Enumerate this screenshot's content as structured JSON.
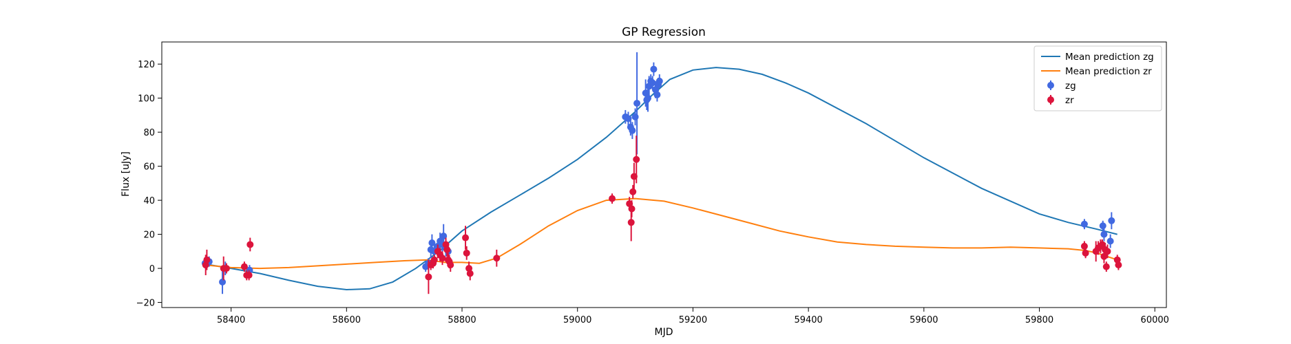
{
  "chart_data": {
    "type": "scatter",
    "title": "GP Regression",
    "xlabel": "MJD",
    "ylabel": "Flux [uJy]",
    "xlim": [
      58280,
      60020
    ],
    "ylim": [
      -23,
      133
    ],
    "x_ticks": [
      58400,
      58600,
      58800,
      59000,
      59200,
      59400,
      59600,
      59800,
      60000
    ],
    "y_ticks": [
      -20,
      0,
      20,
      40,
      60,
      80,
      100,
      120
    ],
    "grid": false,
    "legend_position": "top-right",
    "series": [
      {
        "name": "Mean prediction zg",
        "kind": "line",
        "color": "#1f77b4",
        "points": [
          [
            58355,
            2.5
          ],
          [
            58400,
            0
          ],
          [
            58450,
            -3
          ],
          [
            58500,
            -7
          ],
          [
            58550,
            -10.5
          ],
          [
            58600,
            -12.5
          ],
          [
            58640,
            -12
          ],
          [
            58680,
            -8
          ],
          [
            58720,
            0
          ],
          [
            58760,
            10
          ],
          [
            58800,
            22
          ],
          [
            58850,
            33
          ],
          [
            58900,
            43
          ],
          [
            58950,
            53
          ],
          [
            59000,
            64
          ],
          [
            59050,
            77
          ],
          [
            59080,
            86
          ],
          [
            59100,
            92
          ],
          [
            59130,
            102
          ],
          [
            59160,
            111
          ],
          [
            59200,
            116.5
          ],
          [
            59240,
            118
          ],
          [
            59280,
            117
          ],
          [
            59320,
            114
          ],
          [
            59360,
            109
          ],
          [
            59400,
            103
          ],
          [
            59500,
            85
          ],
          [
            59600,
            65
          ],
          [
            59700,
            47
          ],
          [
            59800,
            32
          ],
          [
            59850,
            27
          ],
          [
            59900,
            23
          ],
          [
            59935,
            20
          ]
        ]
      },
      {
        "name": "Mean prediction zr",
        "kind": "line",
        "color": "#ff7f0e",
        "points": [
          [
            58355,
            2
          ],
          [
            58400,
            0.5
          ],
          [
            58450,
            0
          ],
          [
            58500,
            0.5
          ],
          [
            58550,
            1.5
          ],
          [
            58600,
            2.5
          ],
          [
            58650,
            3.5
          ],
          [
            58700,
            4.5
          ],
          [
            58740,
            5
          ],
          [
            58770,
            3.5
          ],
          [
            58800,
            3.5
          ],
          [
            58830,
            3
          ],
          [
            58860,
            6
          ],
          [
            58900,
            14
          ],
          [
            58950,
            25
          ],
          [
            59000,
            34
          ],
          [
            59050,
            40
          ],
          [
            59100,
            41
          ],
          [
            59150,
            39.5
          ],
          [
            59200,
            35.5
          ],
          [
            59250,
            31
          ],
          [
            59300,
            26.5
          ],
          [
            59350,
            22
          ],
          [
            59400,
            18.5
          ],
          [
            59450,
            15.5
          ],
          [
            59500,
            14
          ],
          [
            59550,
            13
          ],
          [
            59600,
            12.5
          ],
          [
            59650,
            12
          ],
          [
            59700,
            12
          ],
          [
            59750,
            12.5
          ],
          [
            59800,
            12
          ],
          [
            59850,
            11.5
          ],
          [
            59880,
            10.5
          ],
          [
            59900,
            9
          ],
          [
            59935,
            5
          ]
        ]
      },
      {
        "name": "zg",
        "kind": "errorbar",
        "color": "#4169e1",
        "points": [
          [
            58355,
            3,
            3
          ],
          [
            58362,
            4,
            3
          ],
          [
            58385,
            -8,
            7
          ],
          [
            58390,
            0,
            4
          ],
          [
            58432,
            -1,
            3
          ],
          [
            58737,
            1,
            3
          ],
          [
            58742,
            3,
            3
          ],
          [
            58746,
            11,
            5
          ],
          [
            58748,
            15,
            5
          ],
          [
            58752,
            10,
            4
          ],
          [
            58758,
            13,
            4
          ],
          [
            58762,
            16,
            5
          ],
          [
            58766,
            14,
            5
          ],
          [
            58768,
            19,
            7
          ],
          [
            58772,
            12,
            5
          ],
          [
            58776,
            10,
            4
          ],
          [
            59083,
            89,
            4
          ],
          [
            59088,
            88,
            4
          ],
          [
            59092,
            83,
            5
          ],
          [
            59095,
            81,
            5
          ],
          [
            59100,
            89,
            5
          ],
          [
            59103,
            97,
            30
          ],
          [
            59118,
            103,
            8
          ],
          [
            59120,
            99,
            6
          ],
          [
            59122,
            100,
            8
          ],
          [
            59124,
            107,
            6
          ],
          [
            59127,
            110,
            4
          ],
          [
            59130,
            109,
            4
          ],
          [
            59132,
            117,
            4
          ],
          [
            59135,
            105,
            5
          ],
          [
            59138,
            102,
            4
          ],
          [
            59140,
            108,
            4
          ],
          [
            59142,
            110,
            4
          ],
          [
            59878,
            26,
            3
          ],
          [
            59910,
            25,
            3
          ],
          [
            59912,
            20,
            4
          ],
          [
            59923,
            16,
            4
          ],
          [
            59925,
            28,
            5
          ]
        ]
      },
      {
        "name": "zr",
        "kind": "errorbar",
        "color": "#dc143c",
        "points": [
          [
            58356,
            2,
            6
          ],
          [
            58358,
            5,
            6
          ],
          [
            58387,
            0,
            7
          ],
          [
            58392,
            0,
            3
          ],
          [
            58423,
            1,
            3
          ],
          [
            58427,
            -4,
            3
          ],
          [
            58431,
            -4,
            3
          ],
          [
            58433,
            14,
            4
          ],
          [
            58742,
            -5,
            10
          ],
          [
            58746,
            2,
            3
          ],
          [
            58750,
            3,
            3
          ],
          [
            58752,
            5,
            3
          ],
          [
            58758,
            10,
            4
          ],
          [
            58762,
            8,
            4
          ],
          [
            58766,
            6,
            4
          ],
          [
            58772,
            14,
            4
          ],
          [
            58774,
            11,
            4
          ],
          [
            58776,
            5,
            4
          ],
          [
            58778,
            4,
            4
          ],
          [
            58780,
            2,
            4
          ],
          [
            58806,
            18,
            7
          ],
          [
            58808,
            9,
            4
          ],
          [
            58812,
            0,
            4
          ],
          [
            58814,
            -3,
            4
          ],
          [
            58860,
            6,
            5
          ],
          [
            59060,
            41,
            3
          ],
          [
            59090,
            38,
            4
          ],
          [
            59093,
            27,
            11
          ],
          [
            59094,
            35,
            5
          ],
          [
            59096,
            45,
            4
          ],
          [
            59098,
            54,
            8
          ],
          [
            59102,
            64,
            14
          ],
          [
            59878,
            13,
            3
          ],
          [
            59880,
            9,
            3
          ],
          [
            59898,
            10,
            6
          ],
          [
            59902,
            12,
            4
          ],
          [
            59906,
            13,
            4
          ],
          [
            59909,
            14,
            3
          ],
          [
            59912,
            7,
            4
          ],
          [
            59914,
            11,
            4
          ],
          [
            59916,
            1,
            3
          ],
          [
            59918,
            10,
            4
          ],
          [
            59935,
            5,
            3
          ],
          [
            59937,
            2,
            3
          ]
        ]
      }
    ]
  }
}
